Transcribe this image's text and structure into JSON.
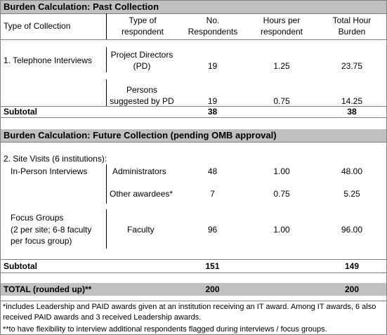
{
  "past": {
    "title": "Burden Calculation:  Past Collection",
    "header": [
      "Type of Collection",
      "Type of respondent",
      "No. Respondents",
      "Hours per respondent",
      "Total Hour Burden"
    ],
    "group": "1. Telephone Interviews",
    "rows": [
      {
        "respondent": "Project Directors (PD)",
        "number": "19",
        "hours": "1.25",
        "total": "23.75"
      },
      {
        "respondent": "Persons suggested by PD",
        "number": "19",
        "hours": "0.75",
        "total": "14.25"
      }
    ],
    "subtotal": {
      "label": "Subtotal",
      "number": "38",
      "total": "38"
    }
  },
  "future": {
    "title": "Burden Calculation:  Future Collection (pending OMB approval)",
    "group": "2. Site Visits (6 institutions):",
    "interviews": {
      "label": "In-Person Interviews",
      "rows": [
        {
          "respondent": "Administrators",
          "number": "48",
          "hours": "1.00",
          "total": "48.00"
        },
        {
          "respondent": "Other awardees*",
          "number": "7",
          "hours": "0.75",
          "total": "5.25"
        }
      ]
    },
    "focus": {
      "label": "Focus Groups",
      "note": "(2 per site; 6-8 faculty per focus group)",
      "row": {
        "respondent": "Faculty",
        "number": "96",
        "hours": "1.00",
        "total": "96.00"
      }
    },
    "subtotal": {
      "label": "Subtotal",
      "number": "151",
      "total": "149"
    }
  },
  "total": {
    "label": "TOTAL (rounded up)**",
    "number": "200",
    "total": "200"
  },
  "footnotes": [
    "*includes Leadership and PAID awards given at an institution receiving an IT award.  Among IT awards, 6 also received PAID awards and 3 received Leadership awards.",
    "**to have flexibility to interview additional respondents flagged during interviews / focus groups."
  ]
}
